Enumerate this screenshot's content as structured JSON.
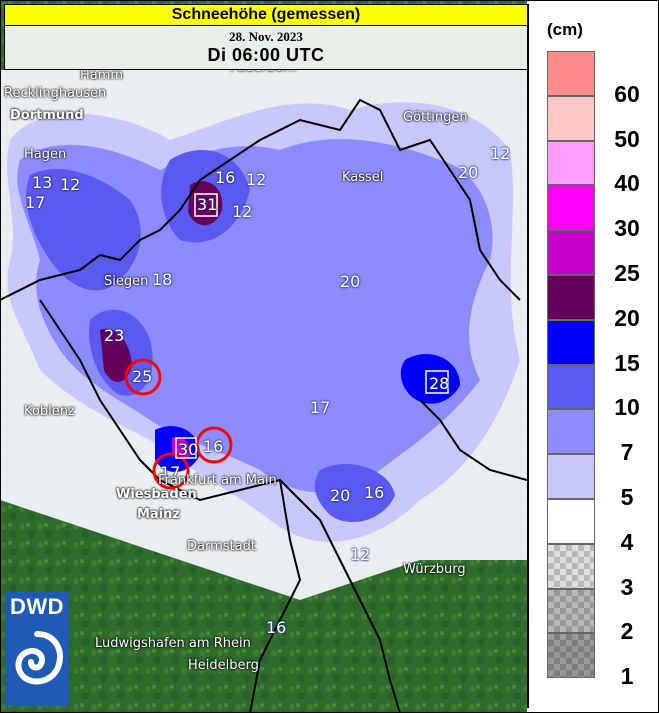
{
  "header": {
    "title": "Schneehöhe (gemessen)",
    "date": "28. Nov. 2023",
    "time": "Di 06:00 UTC"
  },
  "legend": {
    "unit": "(cm)",
    "classes": [
      {
        "label": "60",
        "color": "#ff8c8c"
      },
      {
        "label": "50",
        "color": "#ffc6c6"
      },
      {
        "label": "40",
        "color": "#ff9cff"
      },
      {
        "label": "30",
        "color": "#ff00ff"
      },
      {
        "label": "25",
        "color": "#c800c8"
      },
      {
        "label": "20",
        "color": "#64005a"
      },
      {
        "label": "15",
        "color": "#0000ff"
      },
      {
        "label": "10",
        "color": "#5a5af0"
      },
      {
        "label": "7",
        "color": "#8c8cff"
      },
      {
        "label": "5",
        "color": "#c8c8ff"
      },
      {
        "label": "4",
        "color": "#ffffff"
      },
      {
        "label": "3",
        "color": "#e0e0e0"
      },
      {
        "label": "2",
        "color": "#b8b8b8"
      },
      {
        "label": "1",
        "color": "#999999"
      }
    ]
  },
  "logo": {
    "text": "DWD"
  },
  "cities": [
    {
      "name": "Hamm"
    },
    {
      "name": "Recklinghausen"
    },
    {
      "name": "Dortmund"
    },
    {
      "name": "Paderborn"
    },
    {
      "name": "Göttingen"
    },
    {
      "name": "Hagen"
    },
    {
      "name": "Kassel"
    },
    {
      "name": "Siegen"
    },
    {
      "name": "Koblenz"
    },
    {
      "name": "Frankfurt am Main"
    },
    {
      "name": "Wiesbaden"
    },
    {
      "name": "Mainz"
    },
    {
      "name": "Darmstadt"
    },
    {
      "name": "Würzburg"
    },
    {
      "name": "Ludwigshafen am Rhein"
    },
    {
      "name": "Heidelberg"
    }
  ],
  "station_values": [
    "17",
    "13",
    "12",
    "16",
    "12",
    "31",
    "12",
    "18",
    "20",
    "23",
    "25",
    "30",
    "16",
    "17",
    "20",
    "12",
    "28",
    "17",
    "20",
    "16",
    "12",
    "16"
  ],
  "highlighted_values": [
    "25",
    "16",
    "17"
  ],
  "colors": {
    "terrain": "#2f6b2a",
    "snow_light": "#c8c8ff",
    "snow_mid": "#6f6ff0",
    "border": "#000000",
    "marker": "#ff0000"
  }
}
